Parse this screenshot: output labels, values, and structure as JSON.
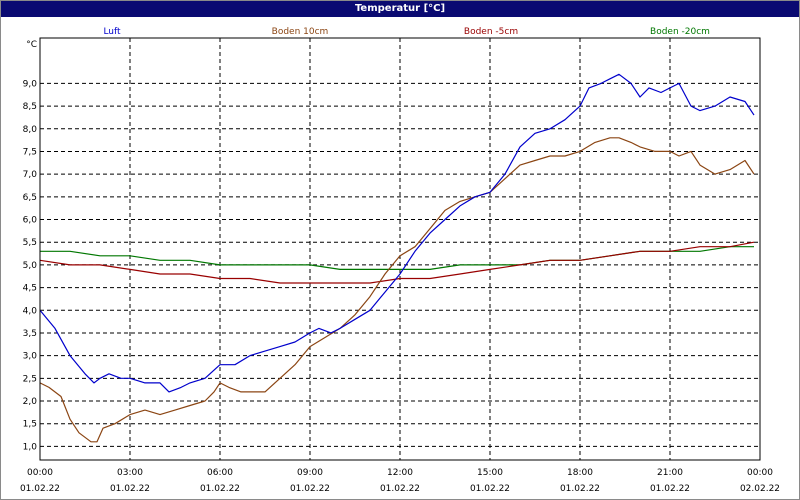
{
  "window": {
    "title": "Temperatur [°C]"
  },
  "chart_data": {
    "type": "line",
    "title": "Temperatur [°C]",
    "ylabel": "°C",
    "xlabel": "",
    "ylim": [
      0.7,
      10.0
    ],
    "xlim": [
      0,
      24
    ],
    "grid": true,
    "legend_position": "top",
    "y_ticks": [
      "1,0",
      "1,5",
      "2,0",
      "2,5",
      "3,0",
      "3,5",
      "4,0",
      "4,5",
      "5,0",
      "5,5",
      "6,0",
      "6,5",
      "7,0",
      "7,5",
      "8,0",
      "8,5",
      "9,0"
    ],
    "x_ticks": [
      {
        "time": "00:00",
        "date": "01.02.22"
      },
      {
        "time": "03:00",
        "date": "01.02.22"
      },
      {
        "time": "06:00",
        "date": "01.02.22"
      },
      {
        "time": "09:00",
        "date": "01.02.22"
      },
      {
        "time": "12:00",
        "date": "01.02.22"
      },
      {
        "time": "15:00",
        "date": "01.02.22"
      },
      {
        "time": "18:00",
        "date": "01.02.22"
      },
      {
        "time": "21:00",
        "date": "01.02.22"
      },
      {
        "time": "00:00",
        "date": "02.02.22"
      }
    ],
    "series": [
      {
        "name": "Luft",
        "color": "#0000cc",
        "x": [
          0,
          0.5,
          1,
          1.5,
          1.8,
          2,
          2.3,
          2.7,
          3,
          3.5,
          4,
          4.3,
          4.7,
          5,
          5.5,
          6,
          6.5,
          7,
          7.5,
          8,
          8.5,
          9,
          9.3,
          9.7,
          10,
          10.5,
          11,
          11.5,
          12,
          12.5,
          13,
          13.5,
          14,
          14.5,
          15,
          15.5,
          16,
          16.5,
          17,
          17.5,
          18,
          18.3,
          18.7,
          19,
          19.3,
          19.7,
          20,
          20.3,
          20.7,
          21,
          21.3,
          21.7,
          22,
          22.5,
          23,
          23.5,
          23.8
        ],
        "y": [
          4.0,
          3.6,
          3.0,
          2.6,
          2.4,
          2.5,
          2.6,
          2.5,
          2.5,
          2.4,
          2.4,
          2.2,
          2.3,
          2.4,
          2.5,
          2.8,
          2.8,
          3.0,
          3.1,
          3.2,
          3.3,
          3.5,
          3.6,
          3.5,
          3.6,
          3.8,
          4.0,
          4.4,
          4.8,
          5.3,
          5.7,
          6.0,
          6.3,
          6.5,
          6.6,
          7.0,
          7.6,
          7.9,
          8.0,
          8.2,
          8.5,
          8.9,
          9.0,
          9.1,
          9.2,
          9.0,
          8.7,
          8.9,
          8.8,
          8.9,
          9.0,
          8.5,
          8.4,
          8.5,
          8.7,
          8.6,
          8.3
        ]
      },
      {
        "name": "Boden 10cm",
        "color": "#8b4513",
        "x": [
          0,
          0.3,
          0.7,
          1,
          1.3,
          1.7,
          1.9,
          2.1,
          2.5,
          3,
          3.5,
          4,
          4.5,
          5,
          5.5,
          5.8,
          6,
          6.3,
          6.7,
          7,
          7.5,
          8,
          8.5,
          9,
          9.5,
          10,
          10.5,
          11,
          11.5,
          12,
          12.5,
          13,
          13.5,
          14,
          14.5,
          15,
          15.5,
          16,
          16.5,
          17,
          17.5,
          18,
          18.5,
          19,
          19.3,
          19.7,
          20,
          20.5,
          21,
          21.3,
          21.7,
          22,
          22.5,
          23,
          23.5,
          23.8
        ],
        "y": [
          2.4,
          2.3,
          2.1,
          1.6,
          1.3,
          1.1,
          1.1,
          1.4,
          1.5,
          1.7,
          1.8,
          1.7,
          1.8,
          1.9,
          2.0,
          2.2,
          2.4,
          2.3,
          2.2,
          2.2,
          2.2,
          2.5,
          2.8,
          3.2,
          3.4,
          3.6,
          3.9,
          4.3,
          4.8,
          5.2,
          5.4,
          5.8,
          6.2,
          6.4,
          6.5,
          6.6,
          6.9,
          7.2,
          7.3,
          7.4,
          7.4,
          7.5,
          7.7,
          7.8,
          7.8,
          7.7,
          7.6,
          7.5,
          7.5,
          7.4,
          7.5,
          7.2,
          7.0,
          7.1,
          7.3,
          7.0
        ]
      },
      {
        "name": "Boden -5cm",
        "color": "#990000",
        "x": [
          0,
          1,
          2,
          3,
          4,
          5,
          6,
          7,
          8,
          9,
          10,
          11,
          12,
          13,
          14,
          15,
          16,
          17,
          18,
          19,
          20,
          21,
          22,
          23,
          23.8
        ],
        "y": [
          5.1,
          5.0,
          5.0,
          4.9,
          4.8,
          4.8,
          4.7,
          4.7,
          4.6,
          4.6,
          4.6,
          4.6,
          4.7,
          4.7,
          4.8,
          4.9,
          5.0,
          5.1,
          5.1,
          5.2,
          5.3,
          5.3,
          5.4,
          5.4,
          5.5
        ]
      },
      {
        "name": "Boden -20cm",
        "color": "#007700",
        "x": [
          0,
          1,
          2,
          3,
          4,
          5,
          6,
          7,
          8,
          9,
          10,
          11,
          12,
          13,
          14,
          15,
          16,
          17,
          18,
          19,
          20,
          21,
          22,
          23,
          23.8
        ],
        "y": [
          5.3,
          5.3,
          5.2,
          5.2,
          5.1,
          5.1,
          5.0,
          5.0,
          5.0,
          5.0,
          4.9,
          4.9,
          4.9,
          4.9,
          5.0,
          5.0,
          5.0,
          5.1,
          5.1,
          5.2,
          5.3,
          5.3,
          5.3,
          5.4,
          5.4
        ]
      }
    ]
  }
}
